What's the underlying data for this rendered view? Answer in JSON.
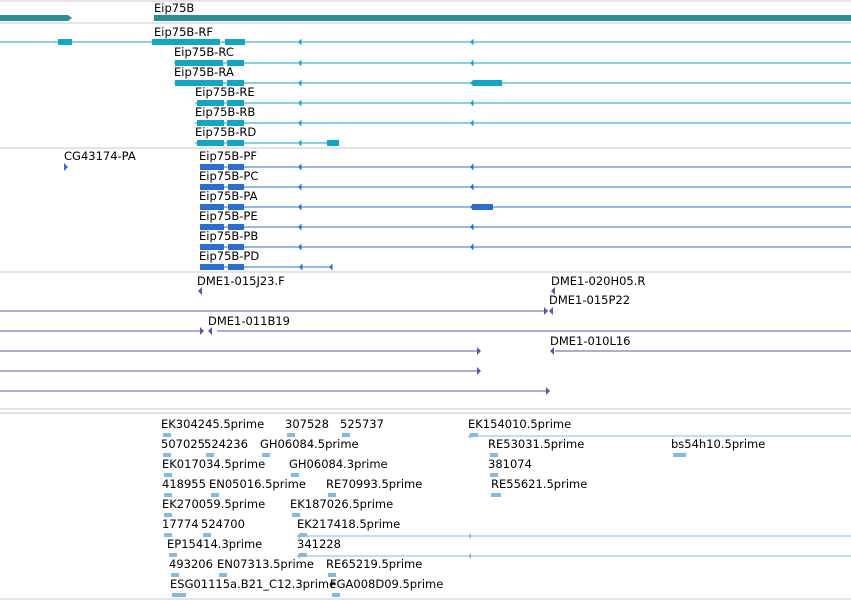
{
  "colors": {
    "gene": "#2a8e96",
    "rna_flybase": "#12a6c3",
    "rna_other": "#2b6dd1",
    "clone": "#6e4fa8",
    "est": "#85b9e0",
    "separator": "#c8c8c8"
  },
  "gene": {
    "label": "Eip75B",
    "icon": "thick-bar-arrow-icon"
  },
  "rna_track_a": [
    {
      "label": "Eip75B-RF"
    },
    {
      "label": "Eip75B-RC"
    },
    {
      "label": "Eip75B-RA"
    },
    {
      "label": "Eip75B-RE"
    },
    {
      "label": "Eip75B-RB"
    },
    {
      "label": "Eip75B-RD"
    }
  ],
  "rna_track_b": [
    {
      "label": "CG43174-PA"
    },
    {
      "label": "Eip75B-PF"
    },
    {
      "label": "Eip75B-PC"
    },
    {
      "label": "Eip75B-PA"
    },
    {
      "label": "Eip75B-PE"
    },
    {
      "label": "Eip75B-PB"
    },
    {
      "label": "Eip75B-PD"
    }
  ],
  "clones": [
    {
      "label": "DME1-015J23.F"
    },
    {
      "label": "DME1-020H05.R"
    },
    {
      "label": "DME1-015P22"
    },
    {
      "label": "DME1-011B19"
    },
    {
      "label": "DME1-010L16"
    }
  ],
  "ests": [
    {
      "label": "EK304245.5prime"
    },
    {
      "label": "307528"
    },
    {
      "label": "525737"
    },
    {
      "label": "EK154010.5prime"
    },
    {
      "label": "507025"
    },
    {
      "label": "524236"
    },
    {
      "label": "GH06084.5prime"
    },
    {
      "label": "RE53031.5prime"
    },
    {
      "label": "bs54h10.5prime"
    },
    {
      "label": "EK017034.5prime"
    },
    {
      "label": "GH06084.3prime"
    },
    {
      "label": "381074"
    },
    {
      "label": "418955"
    },
    {
      "label": "EN05016.5prime"
    },
    {
      "label": "RE70993.5prime"
    },
    {
      "label": "RE55621.5prime"
    },
    {
      "label": "EK270059.5prime"
    },
    {
      "label": "EK187026.5prime"
    },
    {
      "label": "17774"
    },
    {
      "label": "524700"
    },
    {
      "label": "EK217418.5prime"
    },
    {
      "label": "EP15414.3prime"
    },
    {
      "label": "341228"
    },
    {
      "label": "493206"
    },
    {
      "label": "EN07313.5prime"
    },
    {
      "label": "RE65219.5prime"
    },
    {
      "label": "ESG01115a.B21_C12.3prime"
    },
    {
      "label": "FGA008D09.5prime"
    }
  ]
}
